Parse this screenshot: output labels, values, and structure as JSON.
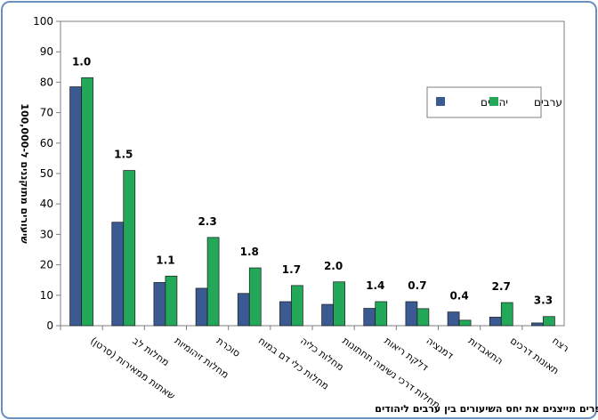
{
  "chart_data": {
    "type": "bar",
    "ylabel": "שיעורים מתוקננים ל-100,000",
    "footnote": "המספרים מייצגים את יחס השיעורים בין ערבים ליהודים",
    "ylim": [
      0,
      100
    ],
    "yticks": [
      0,
      10,
      20,
      30,
      40,
      50,
      60,
      70,
      80,
      90,
      100
    ],
    "grid": false,
    "legend_position": "top-right",
    "categories": [
      [
        "שאתות ממאירות (סרטן)"
      ],
      [
        "מחלות לב"
      ],
      [
        "מחלות זיהומיות"
      ],
      [
        "סוכרת"
      ],
      [
        "מחלות כלי דם במוח"
      ],
      [
        "מחלות כליה"
      ],
      [
        "מחלות דרכי נשימה תחתונות"
      ],
      [
        "דלקת ריאות"
      ],
      [
        "דמנציה"
      ],
      [
        "התאבדות"
      ],
      [
        "תאונות דרכים"
      ],
      [
        "רצח"
      ]
    ],
    "series": [
      {
        "name": "יהודים",
        "color": "#3c5a92",
        "values": [
          78.5,
          34,
          14.2,
          12.3,
          10.6,
          7.9,
          7,
          5.7,
          7.9,
          4.5,
          2.8,
          0.9
        ]
      },
      {
        "name": "ערבים",
        "color": "#22a858",
        "values": [
          81.5,
          51,
          16.3,
          29,
          19,
          13.2,
          14.4,
          7.9,
          5.6,
          1.8,
          7.6,
          3
        ]
      }
    ],
    "ratios": [
      "1.0",
      "1.5",
      "1.1",
      "2.3",
      "1.8",
      "1.7",
      "2.0",
      "1.4",
      "0.7",
      "0.4",
      "2.7",
      "3.3"
    ]
  }
}
